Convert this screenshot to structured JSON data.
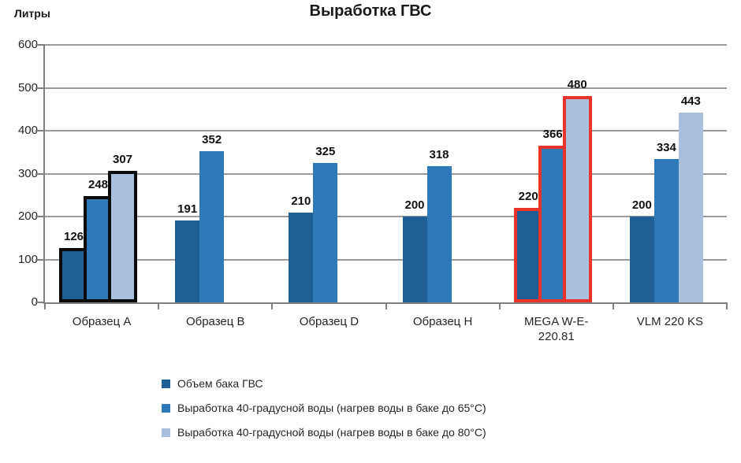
{
  "title": "Выработка ГВС",
  "unit_label": "Литры",
  "chart_data": {
    "type": "bar",
    "title": "Выработка ГВС",
    "ylabel": "Литры",
    "xlabel": "",
    "ylim": [
      0,
      600
    ],
    "ytick_interval": 100,
    "yticks": [
      0,
      100,
      200,
      300,
      400,
      500,
      600
    ],
    "grid": true,
    "legend_position": "bottom-left",
    "categories": [
      "Образец A",
      "Образец B",
      "Образец D",
      "Образец H",
      "MEGA W-E-220.81",
      "VLM 220 KS"
    ],
    "xtick_label_lines": [
      [
        "Образец A"
      ],
      [
        "Образец B"
      ],
      [
        "Образец D"
      ],
      [
        "Образец H"
      ],
      [
        "MEGA W-E-",
        "220.81"
      ],
      [
        "VLM 220 KS"
      ]
    ],
    "series": [
      {
        "name": "Объем бака ГВС",
        "color": "#1f5f94",
        "values": [
          126,
          191,
          210,
          200,
          220,
          200
        ]
      },
      {
        "name": "Выработка 40-градусной воды (нагрев воды в баке до 65°C)",
        "color": "#2e79b8",
        "values": [
          248,
          352,
          325,
          318,
          366,
          334
        ]
      },
      {
        "name": "Выработка 40-градусной воды (нагрев воды в баке до 80°C)",
        "color": "#a9c0de",
        "values": [
          307,
          null,
          null,
          null,
          480,
          443
        ]
      }
    ],
    "highlights": [
      {
        "category_index": 0,
        "category": "Образец A",
        "outline_color": "#0b0b0b"
      },
      {
        "category_index": 4,
        "category": "MEGA W-E-220.81",
        "outline_color": "#e9332b"
      }
    ]
  },
  "colors": {
    "background": "#ffffff",
    "gridline": "#9a9a9a",
    "axis": "#7f7f7f",
    "text": "#1a1a1a"
  }
}
